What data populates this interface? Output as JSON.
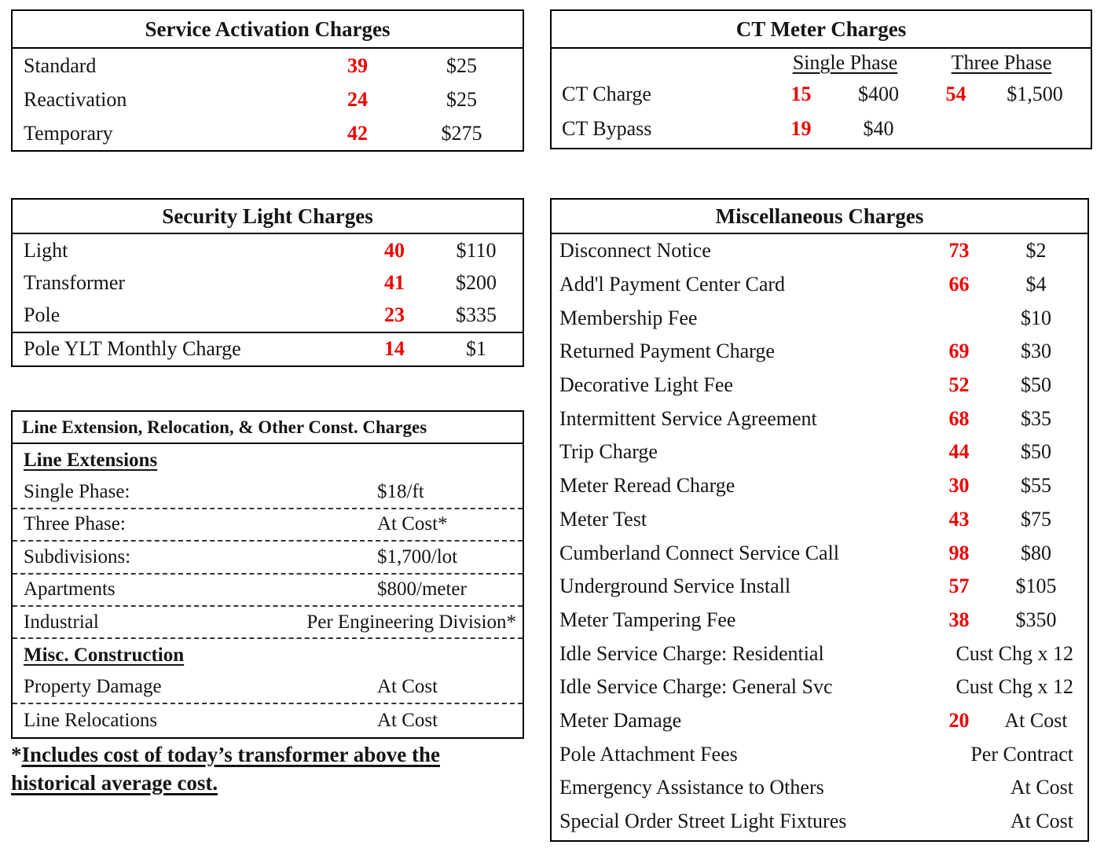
{
  "colors": {
    "accent_red": "#ee0000",
    "text": "#151515",
    "border": "#000000"
  },
  "service_activation": {
    "title": "Service Activation Charges",
    "rows": [
      {
        "label": "Standard",
        "code": "39",
        "amount": "$25"
      },
      {
        "label": "Reactivation",
        "code": "24",
        "amount": "$25"
      },
      {
        "label": "Temporary",
        "code": "42",
        "amount": "$275"
      }
    ]
  },
  "ct_meter": {
    "title": "CT Meter Charges",
    "col_single": "Single Phase",
    "col_three": "Three Phase",
    "rows": [
      {
        "label": "CT Charge",
        "single_code": "15",
        "single_amount": "$400",
        "three_code": "54",
        "three_amount": "$1,500"
      },
      {
        "label": "CT Bypass",
        "single_code": "19",
        "single_amount": "$40",
        "three_code": "",
        "three_amount": ""
      }
    ]
  },
  "security_light": {
    "title": "Security Light Charges",
    "rows": [
      {
        "label": "Light",
        "code": "40",
        "amount": "$110"
      },
      {
        "label": "Transformer",
        "code": "41",
        "amount": "$200"
      },
      {
        "label": "Pole",
        "code": "23",
        "amount": "$335"
      }
    ],
    "footer_row": {
      "label": "Pole YLT Monthly Charge",
      "code": "14",
      "amount": "$1"
    }
  },
  "line_extension": {
    "title": "Line Extension, Relocation, & Other Const. Charges",
    "section1": "Line Extensions",
    "rows1": [
      {
        "label": "Single Phase:",
        "value": "$18/ft"
      },
      {
        "label": "Three Phase:",
        "value": "At Cost*"
      },
      {
        "label": "Subdivisions:",
        "value": "$1,700/lot"
      },
      {
        "label": "Apartments",
        "value": "$800/meter"
      },
      {
        "label": "Industrial",
        "value": "Per Engineering Division*"
      }
    ],
    "section2": "Misc. Construction",
    "rows2": [
      {
        "label": "Property Damage",
        "value": "At Cost"
      },
      {
        "label": "Line Relocations",
        "value": "At Cost"
      }
    ]
  },
  "misc_charges": {
    "title": "Miscellaneous Charges",
    "rows": [
      {
        "label": "Disconnect Notice",
        "code": "73",
        "amount": "$2"
      },
      {
        "label": "Add'l Payment Center Card",
        "code": "66",
        "amount": "$4"
      },
      {
        "label": "Membership Fee",
        "code": "",
        "amount": "$10"
      },
      {
        "label": "Returned Payment Charge",
        "code": "69",
        "amount": "$30"
      },
      {
        "label": "Decorative Light Fee",
        "code": "52",
        "amount": "$50"
      },
      {
        "label": "Intermittent Service Agreement",
        "code": "68",
        "amount": "$35"
      },
      {
        "label": "Trip Charge",
        "code": "44",
        "amount": "$50"
      },
      {
        "label": "Meter Reread Charge",
        "code": "30",
        "amount": "$55"
      },
      {
        "label": "Meter Test",
        "code": "43",
        "amount": "$75"
      },
      {
        "label": "Cumberland Connect Service Call",
        "code": "98",
        "amount": "$80"
      },
      {
        "label": "Underground Service Install",
        "code": "57",
        "amount": "$105"
      },
      {
        "label": "Meter Tampering Fee",
        "code": "38",
        "amount": "$350"
      },
      {
        "label": "Idle Service Charge: Residential",
        "span_value": "Cust Chg x 12"
      },
      {
        "label": "Idle Service Charge: General Svc",
        "span_value": "Cust Chg x 12"
      },
      {
        "label": "Meter Damage",
        "code": "20",
        "amount": "At Cost"
      },
      {
        "label": "Pole Attachment Fees",
        "span_value": "Per Contract"
      },
      {
        "label": "Emergency Assistance to Others",
        "span_value": "At Cost"
      },
      {
        "label": "Special Order Street Light Fixtures",
        "span_value": "At Cost"
      }
    ]
  },
  "footnote": {
    "marker": "*",
    "line1": "Includes cost of today’s transformer above the",
    "line2": "historical average cost."
  }
}
